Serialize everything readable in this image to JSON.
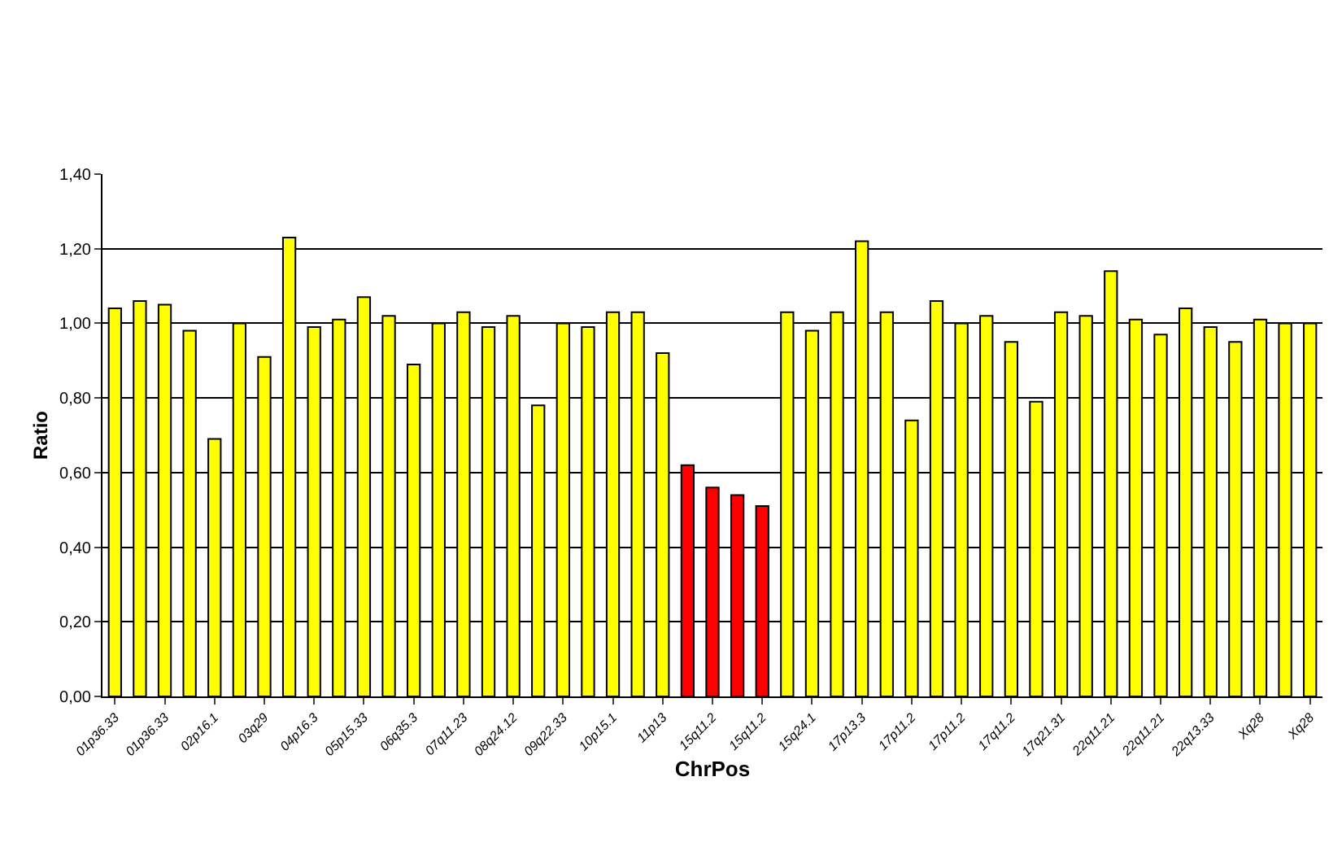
{
  "chart_data": {
    "type": "bar",
    "xlabel": "ChrPos",
    "ylabel": "Ratio",
    "categories": [
      "01p36.33",
      null,
      "01p36.33",
      null,
      "02p16.1",
      null,
      "03q29",
      null,
      "04p16.3",
      null,
      "05p15.33",
      null,
      "06q35.3",
      null,
      "07q11.23",
      null,
      "08q24.12",
      null,
      "09q22.33",
      null,
      "10p15.1",
      null,
      "11p13",
      null,
      "15q11.2",
      null,
      "15q11.2",
      null,
      "15q24.1",
      null,
      "17p13.3",
      null,
      "17p11.2",
      null,
      "17p11.2",
      null,
      "17q11.2",
      null,
      "17q21.31",
      null,
      "22q11.21",
      null,
      "22q11.21",
      null,
      "22q13.33",
      null,
      "Xq28",
      null,
      "Xq28"
    ],
    "values": [
      1.04,
      1.06,
      1.05,
      0.98,
      0.69,
      1.0,
      0.91,
      1.23,
      0.99,
      1.01,
      1.07,
      1.02,
      0.89,
      1.0,
      1.03,
      0.99,
      1.02,
      0.78,
      1.0,
      0.99,
      1.03,
      1.03,
      0.92,
      0.62,
      0.56,
      0.54,
      0.51,
      1.03,
      0.98,
      1.03,
      1.22,
      1.03,
      0.74,
      1.06,
      1.0,
      1.02,
      0.95,
      0.79,
      1.03,
      1.02,
      1.14,
      1.01,
      0.97,
      1.04,
      0.99,
      0.95,
      1.01,
      1.0,
      1.0
    ],
    "colors": [
      "#ffff00",
      "#ffff00",
      "#ffff00",
      "#ffff00",
      "#ffff00",
      "#ffff00",
      "#ffff00",
      "#ffff00",
      "#ffff00",
      "#ffff00",
      "#ffff00",
      "#ffff00",
      "#ffff00",
      "#ffff00",
      "#ffff00",
      "#ffff00",
      "#ffff00",
      "#ffff00",
      "#ffff00",
      "#ffff00",
      "#ffff00",
      "#ffff00",
      "#ffff00",
      "#ff0000",
      "#ff0000",
      "#ff0000",
      "#ff0000",
      "#ffff00",
      "#ffff00",
      "#ffff00",
      "#ffff00",
      "#ffff00",
      "#ffff00",
      "#ffff00",
      "#ffff00",
      "#ffff00",
      "#ffff00",
      "#ffff00",
      "#ffff00",
      "#ffff00",
      "#ffff00",
      "#ffff00",
      "#ffff00",
      "#ffff00",
      "#ffff00",
      "#ffff00",
      "#ffff00",
      "#ffff00",
      "#ffff00"
    ],
    "ylim": [
      0,
      1.4
    ],
    "yticks": [
      {
        "value": 0,
        "label": "0,00"
      },
      {
        "value": 0.2,
        "label": "0,20"
      },
      {
        "value": 0.4,
        "label": "0,40"
      },
      {
        "value": 0.6,
        "label": "0,60"
      },
      {
        "value": 0.8,
        "label": "0,80"
      },
      {
        "value": 1.0,
        "label": "1,00"
      },
      {
        "value": 1.2,
        "label": "1,20"
      },
      {
        "value": 1.4,
        "label": "1,40"
      }
    ],
    "grid": "y"
  }
}
